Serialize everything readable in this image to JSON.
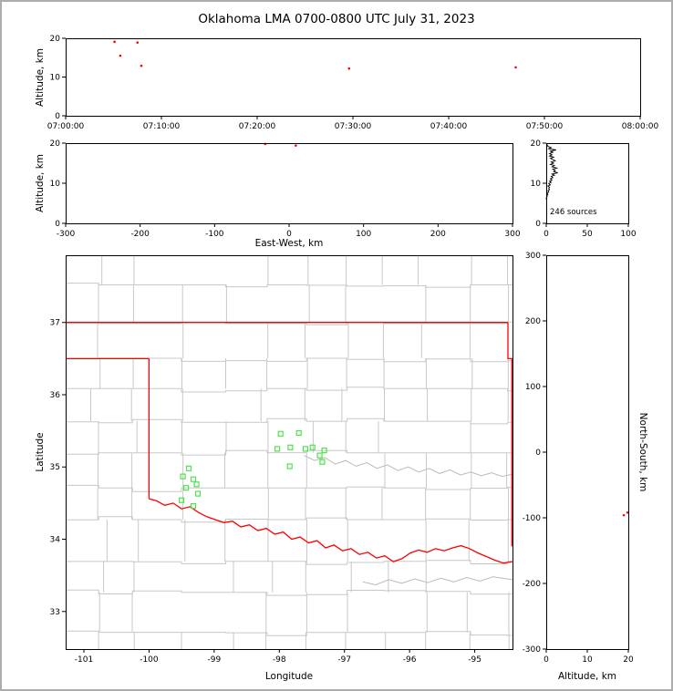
{
  "title": "Oklahoma LMA 0700-0800 UTC July 31, 2023",
  "labels": {
    "altitude_axis": "Altitude, km",
    "east_west_axis": "East-West, km",
    "latitude_axis": "Latitude",
    "longitude_axis": "Longitude",
    "north_south_axis": "North-South, km",
    "sources_annotation": "246 sources"
  },
  "colors": {
    "source_red": "#ff0000",
    "station_green": "#4ee34e",
    "state_border_red": "#ff0000",
    "county_gray": "#c8c8c8",
    "river_gray": "#bbbbbb",
    "histogram_black": "#000000",
    "frame_gray": "#adadad"
  },
  "chart_data": {
    "type": "scatter",
    "title": "Oklahoma LMA 0700-0800 UTC July 31, 2023",
    "panels": {
      "time_altitude": {
        "ylabel": "Altitude, km",
        "ylim": [
          0,
          20
        ],
        "yticks": [
          0,
          10,
          20
        ],
        "xtick_minutes": [
          0,
          10,
          20,
          30,
          40,
          50,
          60
        ],
        "xtick_labels": [
          "07:00:00",
          "07:10:00",
          "07:20:00",
          "07:30:00",
          "07:40:00",
          "07:50:00",
          "08:00:00"
        ],
        "points": [
          {
            "minutes": 5.1,
            "alt_km": 19.1
          },
          {
            "minutes": 5.7,
            "alt_km": 15.5
          },
          {
            "minutes": 7.5,
            "alt_km": 18.9
          },
          {
            "minutes": 7.9,
            "alt_km": 12.9
          },
          {
            "minutes": 29.6,
            "alt_km": 12.2
          },
          {
            "minutes": 47.0,
            "alt_km": 12.5
          }
        ]
      },
      "eastwest_altitude": {
        "xlabel": "East-West, km",
        "xlim": [
          -300,
          300
        ],
        "xticks": [
          -300,
          -200,
          -100,
          0,
          100,
          200,
          300
        ],
        "ylim": [
          0,
          20
        ],
        "yticks": [
          0,
          10,
          20
        ],
        "points": [
          {
            "ew_km": -32,
            "alt_km": 19.8
          },
          {
            "ew_km": 9,
            "alt_km": 19.4
          }
        ]
      },
      "altitude_histogram": {
        "xlim": [
          0,
          100
        ],
        "xticks": [
          0,
          50,
          100
        ],
        "ylim": [
          0,
          20
        ],
        "yticks": [
          0,
          10,
          20
        ],
        "annotation": "246 sources",
        "profile_alt_count": [
          [
            19.8,
            0
          ],
          [
            19.6,
            1
          ],
          [
            19.2,
            2
          ],
          [
            18.9,
            6
          ],
          [
            18.6,
            3
          ],
          [
            18.3,
            12
          ],
          [
            18.0,
            5
          ],
          [
            17.7,
            8
          ],
          [
            17.4,
            4
          ],
          [
            17.1,
            7
          ],
          [
            16.8,
            4
          ],
          [
            16.5,
            9
          ],
          [
            16.2,
            5
          ],
          [
            15.9,
            8
          ],
          [
            15.6,
            11
          ],
          [
            15.3,
            6
          ],
          [
            15.0,
            9
          ],
          [
            14.7,
            5
          ],
          [
            14.4,
            10
          ],
          [
            14.1,
            7
          ],
          [
            13.8,
            13
          ],
          [
            13.5,
            8
          ],
          [
            13.2,
            11
          ],
          [
            12.9,
            9
          ],
          [
            12.6,
            14
          ],
          [
            12.3,
            7
          ],
          [
            12.0,
            10
          ],
          [
            11.7,
            6
          ],
          [
            11.4,
            8
          ],
          [
            11.1,
            5
          ],
          [
            10.8,
            7
          ],
          [
            10.5,
            4
          ],
          [
            10.2,
            6
          ],
          [
            9.9,
            3
          ],
          [
            9.6,
            5
          ],
          [
            9.3,
            2
          ],
          [
            9.0,
            4
          ],
          [
            8.7,
            3
          ],
          [
            8.4,
            4
          ],
          [
            8.1,
            2
          ],
          [
            7.8,
            3
          ],
          [
            7.5,
            1
          ],
          [
            7.2,
            2
          ],
          [
            6.9,
            1
          ],
          [
            6.6,
            1
          ],
          [
            6.3,
            0
          ],
          [
            6.0,
            0
          ]
        ]
      },
      "map": {
        "xlabel": "Longitude",
        "ylabel": "Latitude",
        "xlim": [
          -101.28,
          -94.42
        ],
        "xticks": [
          -101,
          -100,
          -99,
          -98,
          -97,
          -96,
          -95
        ],
        "ylim": [
          32.48,
          37.93
        ],
        "yticks": [
          33,
          34,
          35,
          36,
          37
        ],
        "stations": [
          {
            "lon": -99.39,
            "lat": 34.98
          },
          {
            "lon": -99.48,
            "lat": 34.87
          },
          {
            "lon": -99.32,
            "lat": 34.83
          },
          {
            "lon": -99.27,
            "lat": 34.76
          },
          {
            "lon": -99.43,
            "lat": 34.71
          },
          {
            "lon": -99.25,
            "lat": 34.63
          },
          {
            "lon": -99.5,
            "lat": 34.54
          },
          {
            "lon": -99.32,
            "lat": 34.46
          },
          {
            "lon": -97.98,
            "lat": 35.46
          },
          {
            "lon": -97.7,
            "lat": 35.47
          },
          {
            "lon": -98.03,
            "lat": 35.25
          },
          {
            "lon": -97.83,
            "lat": 35.27
          },
          {
            "lon": -97.6,
            "lat": 35.25
          },
          {
            "lon": -97.49,
            "lat": 35.27
          },
          {
            "lon": -97.31,
            "lat": 35.23
          },
          {
            "lon": -97.38,
            "lat": 35.16
          },
          {
            "lon": -97.84,
            "lat": 35.01
          },
          {
            "lon": -97.34,
            "lat": 35.07
          }
        ],
        "state_border": {
          "north": [
            [
              -101.28,
              37.0
            ],
            [
              -94.49,
              37.0
            ]
          ],
          "east": [
            [
              -94.49,
              37.0
            ],
            [
              -94.49,
              36.5
            ],
            [
              -94.43,
              36.5
            ],
            [
              -94.43,
              33.9
            ]
          ],
          "panhandle_south": [
            [
              -101.28,
              36.5
            ],
            [
              -100.0,
              36.5
            ]
          ],
          "west": [
            [
              -100.0,
              36.5
            ],
            [
              -100.0,
              34.56
            ]
          ],
          "red_river": [
            [
              -100.0,
              34.56
            ],
            [
              -99.88,
              34.53
            ],
            [
              -99.76,
              34.47
            ],
            [
              -99.63,
              34.5
            ],
            [
              -99.5,
              34.42
            ],
            [
              -99.37,
              34.45
            ],
            [
              -99.24,
              34.37
            ],
            [
              -99.11,
              34.31
            ],
            [
              -98.98,
              34.27
            ],
            [
              -98.85,
              34.23
            ],
            [
              -98.72,
              34.25
            ],
            [
              -98.59,
              34.17
            ],
            [
              -98.46,
              34.2
            ],
            [
              -98.33,
              34.12
            ],
            [
              -98.2,
              34.15
            ],
            [
              -98.07,
              34.07
            ],
            [
              -97.94,
              34.1
            ],
            [
              -97.81,
              34.0
            ],
            [
              -97.68,
              34.03
            ],
            [
              -97.55,
              33.95
            ],
            [
              -97.42,
              33.98
            ],
            [
              -97.29,
              33.88
            ],
            [
              -97.16,
              33.92
            ],
            [
              -97.03,
              33.84
            ],
            [
              -96.9,
              33.87
            ],
            [
              -96.77,
              33.79
            ],
            [
              -96.64,
              33.82
            ],
            [
              -96.51,
              33.74
            ],
            [
              -96.38,
              33.77
            ],
            [
              -96.25,
              33.69
            ],
            [
              -96.12,
              33.73
            ],
            [
              -95.99,
              33.81
            ],
            [
              -95.86,
              33.85
            ],
            [
              -95.73,
              33.82
            ],
            [
              -95.6,
              33.87
            ],
            [
              -95.47,
              33.84
            ],
            [
              -95.34,
              33.88
            ],
            [
              -95.21,
              33.91
            ],
            [
              -95.08,
              33.87
            ],
            [
              -94.95,
              33.81
            ],
            [
              -94.82,
              33.76
            ],
            [
              -94.69,
              33.71
            ],
            [
              -94.56,
              33.67
            ],
            [
              -94.42,
              33.69
            ]
          ]
        },
        "rivers": [
          [
            [
              -97.62,
              35.16
            ],
            [
              -97.46,
              35.09
            ],
            [
              -97.3,
              35.13
            ],
            [
              -97.14,
              35.04
            ],
            [
              -96.98,
              35.09
            ],
            [
              -96.82,
              35.01
            ],
            [
              -96.66,
              35.06
            ],
            [
              -96.5,
              34.98
            ],
            [
              -96.34,
              35.03
            ],
            [
              -96.18,
              34.95
            ],
            [
              -96.02,
              35.0
            ],
            [
              -95.86,
              34.93
            ],
            [
              -95.7,
              34.98
            ],
            [
              -95.54,
              34.91
            ],
            [
              -95.38,
              34.96
            ],
            [
              -95.22,
              34.89
            ],
            [
              -95.06,
              34.93
            ],
            [
              -94.9,
              34.88
            ],
            [
              -94.74,
              34.92
            ],
            [
              -94.58,
              34.87
            ],
            [
              -94.42,
              34.9
            ]
          ],
          [
            [
              -96.72,
              33.41
            ],
            [
              -96.52,
              33.37
            ],
            [
              -96.32,
              33.44
            ],
            [
              -96.12,
              33.39
            ],
            [
              -95.92,
              33.45
            ],
            [
              -95.72,
              33.4
            ],
            [
              -95.52,
              33.46
            ],
            [
              -95.32,
              33.41
            ],
            [
              -95.12,
              33.47
            ],
            [
              -94.92,
              33.42
            ],
            [
              -94.72,
              33.48
            ],
            [
              -94.42,
              33.44
            ]
          ]
        ]
      },
      "north_south_altitude": {
        "xlabel": "Altitude, km",
        "xlim": [
          0,
          20
        ],
        "xticks": [
          0,
          10,
          20
        ],
        "ylabel": "North-South, km",
        "ylim": [
          -300,
          300
        ],
        "yticks": [
          300,
          200,
          100,
          0,
          -100,
          -200,
          -300
        ],
        "points": [
          {
            "alt_km": 19.8,
            "ns_km": -92
          },
          {
            "alt_km": 18.9,
            "ns_km": -96
          }
        ]
      }
    }
  }
}
